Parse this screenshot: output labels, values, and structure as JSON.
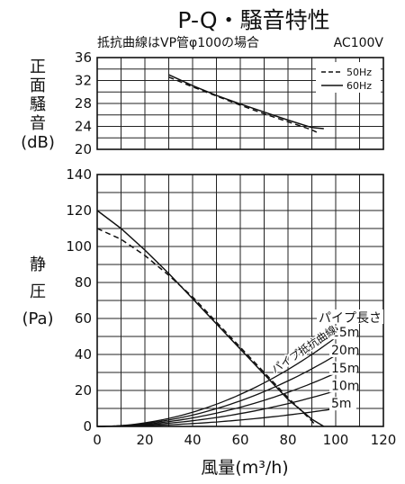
{
  "chart_data": [
    {
      "type": "line",
      "title": "P-Q・騒音特性",
      "subtitle": "抵抗曲線はVP管φ100の場合",
      "power_note": "AC100V",
      "ylabel": "正面騒音(dB)",
      "ylabel_lines": [
        "正",
        "面",
        "騒",
        "音",
        "(dB)"
      ],
      "xlim": [
        0,
        120
      ],
      "ylim": [
        20,
        36
      ],
      "y_ticks": [
        20,
        24,
        28,
        32,
        36
      ],
      "grid": true,
      "legend_position": "top-right",
      "series": [
        {
          "name": "50Hz",
          "line_style": "dashed",
          "x": [
            30,
            40,
            50,
            60,
            70,
            80,
            90,
            92
          ],
          "y": [
            32.6,
            30.9,
            29.3,
            27.7,
            26.2,
            24.8,
            23.4,
            23.0
          ]
        },
        {
          "name": "60Hz",
          "line_style": "solid",
          "x": [
            30,
            40,
            50,
            60,
            70,
            80,
            90,
            95
          ],
          "y": [
            33.0,
            31.1,
            29.4,
            27.9,
            26.5,
            25.1,
            23.8,
            23.6
          ]
        }
      ]
    },
    {
      "type": "line",
      "xlabel": "風量(m³/h)",
      "ylabel": "静圧(Pa)",
      "ylabel_lines": [
        "静",
        "圧",
        "(Pa)"
      ],
      "xlim": [
        0,
        120
      ],
      "ylim": [
        0,
        140
      ],
      "x_ticks": [
        0,
        20,
        40,
        60,
        80,
        100,
        120
      ],
      "y_ticks": [
        0,
        20,
        40,
        60,
        80,
        100,
        120,
        140
      ],
      "grid": true,
      "series": [
        {
          "line_style": "dashed",
          "x": [
            0,
            10,
            20,
            30,
            40,
            50,
            60,
            70,
            80,
            90,
            92
          ],
          "y": [
            110,
            104,
            95,
            84,
            72,
            58,
            44,
            30,
            16,
            3,
            0
          ]
        },
        {
          "line_style": "solid",
          "x": [
            0,
            10,
            20,
            30,
            40,
            50,
            60,
            70,
            80,
            90,
            95
          ],
          "y": [
            120,
            110,
            98,
            85,
            71,
            57,
            43,
            29,
            15,
            4,
            0
          ]
        }
      ],
      "resistance_curves": {
        "group_label": "パイプ長さ",
        "curve_label": "パイプ抵抗曲線",
        "curves": [
          {
            "label": "25m",
            "x": [
              0,
              20,
              40,
              60,
              80,
              100
            ],
            "y": [
              0,
              2.0,
              7.9,
              17.8,
              31.6,
              49.4
            ]
          },
          {
            "label": "20m",
            "x": [
              0,
              20,
              40,
              60,
              80,
              100
            ],
            "y": [
              0,
              1.6,
              6.3,
              14.2,
              25.3,
              39.5
            ]
          },
          {
            "label": "15m",
            "x": [
              0,
              20,
              40,
              60,
              80,
              100
            ],
            "y": [
              0,
              1.2,
              4.7,
              10.7,
              19.0,
              29.6
            ]
          },
          {
            "label": "10m",
            "x": [
              0,
              20,
              40,
              60,
              80,
              100
            ],
            "y": [
              0,
              0.8,
              3.2,
              7.1,
              12.6,
              19.8
            ]
          },
          {
            "label": "5m",
            "x": [
              0,
              20,
              40,
              60,
              80,
              100
            ],
            "y": [
              0,
              0.4,
              1.6,
              3.6,
              6.3,
              9.9
            ]
          }
        ]
      }
    }
  ]
}
